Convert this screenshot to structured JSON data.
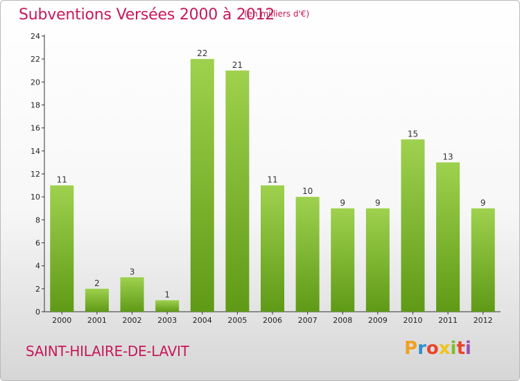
{
  "title": "Subventions Versées 2000 à 2012",
  "subtitle": "(en milliers d'€)",
  "commune": "SAINT-HILAIRE-DE-LAVIT",
  "logo": {
    "letters": [
      "P",
      "r",
      "o",
      "x",
      "i",
      "t",
      "i"
    ],
    "colors": [
      "#f0a020",
      "#2e8fd0",
      "#e8452c",
      "#f0c419",
      "#7cbf2e",
      "#e8452c",
      "#9c4fb0"
    ]
  },
  "colors": {
    "bar_light": "#9ed14e",
    "bar_dark": "#5f9a16",
    "text_accent": "#c8185a"
  },
  "chart_data": {
    "type": "bar",
    "categories": [
      "2000",
      "2001",
      "2002",
      "2003",
      "2004",
      "2005",
      "2006",
      "2007",
      "2008",
      "2009",
      "2010",
      "2011",
      "2012"
    ],
    "values": [
      11,
      2,
      3,
      1,
      22,
      21,
      11,
      10,
      9,
      9,
      15,
      13,
      9
    ],
    "ylim": [
      0,
      24
    ],
    "yticks": [
      0,
      2,
      4,
      6,
      8,
      10,
      12,
      14,
      16,
      18,
      20,
      22,
      24
    ],
    "grid": false,
    "data_labels": true
  }
}
